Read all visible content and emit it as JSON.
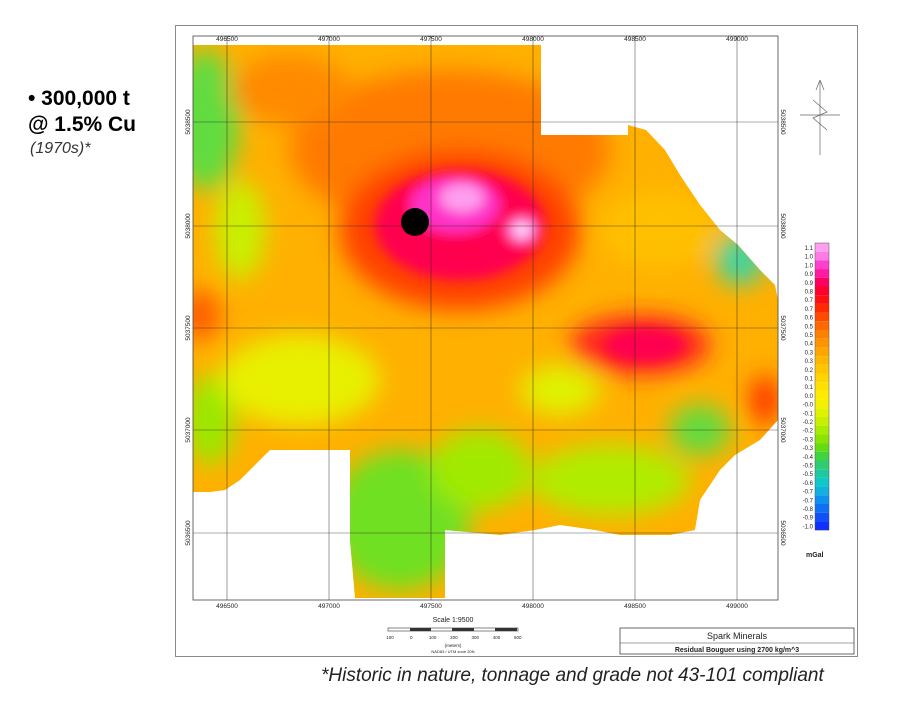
{
  "headline": {
    "line1": "• 300,000 t",
    "line2": "@ 1.5% Cu"
  },
  "era_note": "(1970s)*",
  "footnote": "*Historic in nature, tonnage and grade not 43-101 compliant",
  "map": {
    "easting_ticks": [
      "496500",
      "497000",
      "497500",
      "498000",
      "498500",
      "499000"
    ],
    "northing_ticks": [
      "5038500",
      "5038000",
      "5037500",
      "5037000",
      "5036500"
    ],
    "scale_text": "Scale 1:9500",
    "scale_bar_ticks": [
      "100",
      "0",
      "100",
      "200",
      "300",
      "400",
      "500"
    ],
    "scale_units": "(meters)",
    "scale_datum": "NAD83 / UTM zone 20N",
    "company": "Spark Minerals",
    "survey": "Residual Bouguer using 2700 kg/m^3",
    "deposit_marker": "deposit location",
    "colorbar": {
      "unit": "mGal",
      "labels": [
        "1.1",
        "1.0",
        "1.0",
        "0.9",
        "0.9",
        "0.8",
        "0.7",
        "0.7",
        "0.6",
        "0.5",
        "0.5",
        "0.4",
        "0.3",
        "0.3",
        "0.2",
        "0.1",
        "0.1",
        "0.0",
        "-0.0",
        "-0.1",
        "-0.2",
        "-0.2",
        "-0.3",
        "-0.3",
        "-0.4",
        "-0.5",
        "-0.5",
        "-0.6",
        "-0.7",
        "-0.7",
        "-0.8",
        "-0.9",
        "-1.0"
      ],
      "colors": [
        "#ff9ff0",
        "#ff7be8",
        "#ff3fd0",
        "#ff1aa0",
        "#ff0060",
        "#ff0030",
        "#ff1010",
        "#ff2a00",
        "#ff4a00",
        "#ff6a00",
        "#ff8000",
        "#ff9400",
        "#ffa600",
        "#ffb600",
        "#ffc600",
        "#ffd400",
        "#ffe000",
        "#ffea00",
        "#f4f000",
        "#e0f200",
        "#c6f000",
        "#a8ec00",
        "#88e400",
        "#64dc10",
        "#40d440",
        "#30cc70",
        "#20c8a0",
        "#10c8c8",
        "#10b0e0",
        "#1090ee",
        "#1070f4",
        "#1050f8",
        "#1030ff"
      ]
    }
  }
}
